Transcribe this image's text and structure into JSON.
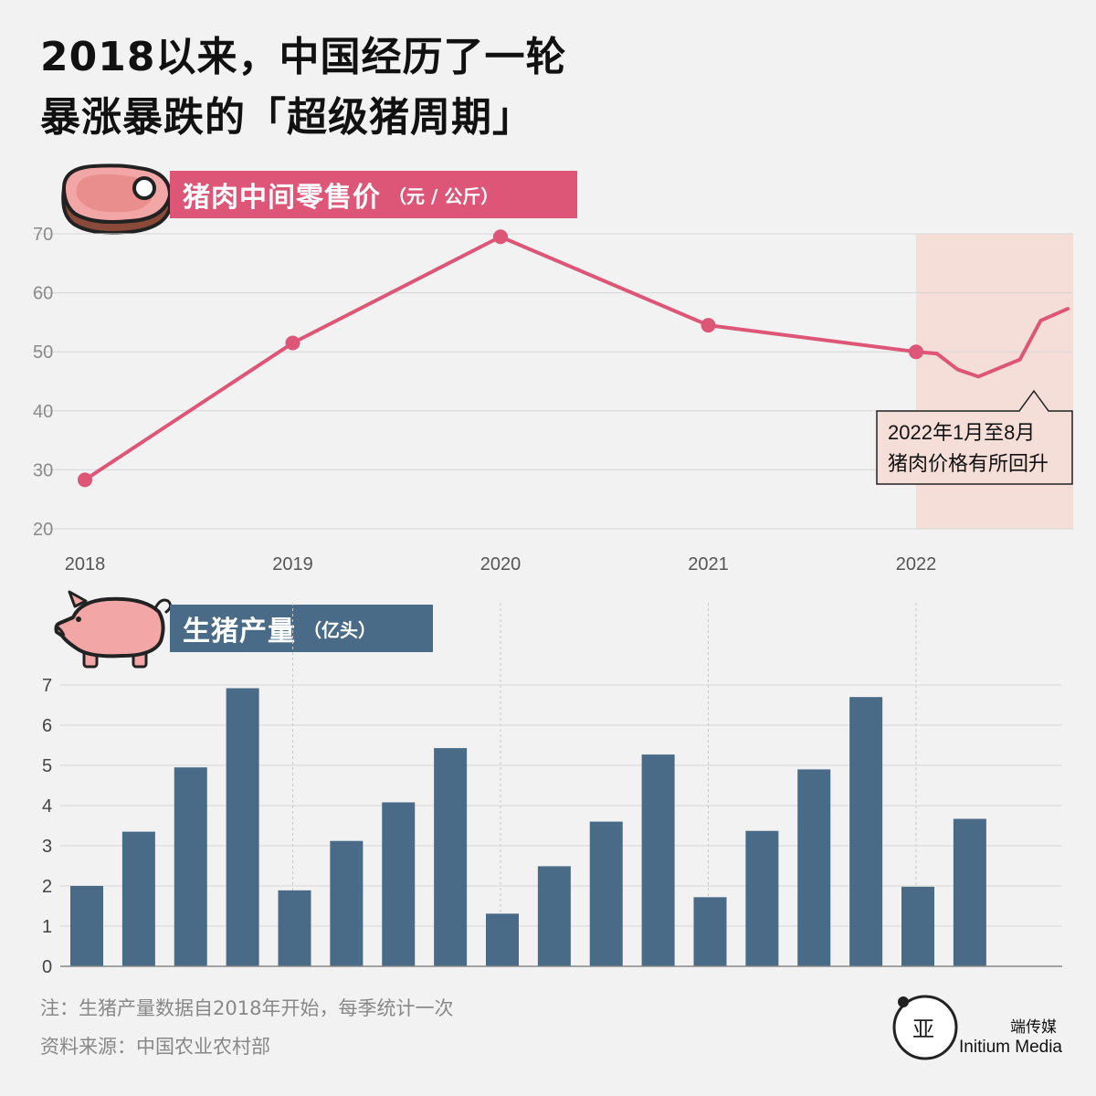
{
  "title": {
    "line1": "2018以来，中国经历了一轮",
    "line2": "暴涨暴跌的「超级猪周期」"
  },
  "price_section": {
    "label": "猪肉中间零售价",
    "unit": "（元 / 公斤）",
    "icon": "meat-steak-icon"
  },
  "production_section": {
    "label": "生猪产量",
    "unit": "（亿头）",
    "icon": "pig-icon"
  },
  "annotation": {
    "line1": "2022年1月至8月",
    "line2": "猪肉价格有所回升"
  },
  "footnotes": {
    "note": "注：生猪产量数据自2018年开始，每季统计一次",
    "source": "资料来源：中国农业农村部"
  },
  "brand": {
    "name_cn": "端传媒",
    "name_en": "Initium Media",
    "logo_icon": "initium-logo-icon"
  },
  "colors": {
    "pink": "#dd5677",
    "blue": "#4a6b87",
    "highlight": "#f5ded8",
    "grid": "#d6d6d6",
    "axis_text": "#8a8a8a"
  },
  "chart_data": [
    {
      "type": "line",
      "title": "猪肉中间零售价",
      "ylabel": "（元 / 公斤）",
      "x_ticks": [
        "2018",
        "2019",
        "2020",
        "2021",
        "2022"
      ],
      "x_range": [
        2018.0,
        2022.78
      ],
      "ylim": [
        20,
        70
      ],
      "y_ticks": [
        20,
        30,
        40,
        50,
        60,
        70
      ],
      "grid": true,
      "highlight_range": [
        2022.0,
        2022.78
      ],
      "series": [
        {
          "x": [
            2018.0,
            2019.0,
            2020.0,
            2021.0,
            2022.0,
            2022.1,
            2022.2,
            2022.3,
            2022.5,
            2022.6,
            2022.73
          ],
          "values": [
            28.3,
            51.5,
            69.5,
            54.5,
            50.0,
            49.7,
            47.0,
            45.8,
            48.7,
            55.3,
            57.3
          ],
          "markers": [
            true,
            true,
            true,
            true,
            true,
            false,
            false,
            false,
            false,
            false,
            false
          ]
        }
      ]
    },
    {
      "type": "bar",
      "title": "生猪产量",
      "ylabel": "（亿头）",
      "x_ticks": [
        "2018",
        "2019",
        "2020",
        "2021",
        "2022"
      ],
      "quarters_per_year": 4,
      "ylim": [
        0,
        7
      ],
      "y_ticks": [
        0,
        1,
        2,
        3,
        4,
        5,
        6,
        7
      ],
      "grid": true,
      "values": [
        2.0,
        3.35,
        4.95,
        6.92,
        1.89,
        3.12,
        4.08,
        5.43,
        1.31,
        2.49,
        3.6,
        5.27,
        1.72,
        3.37,
        4.9,
        6.7,
        1.98,
        3.67
      ]
    }
  ]
}
